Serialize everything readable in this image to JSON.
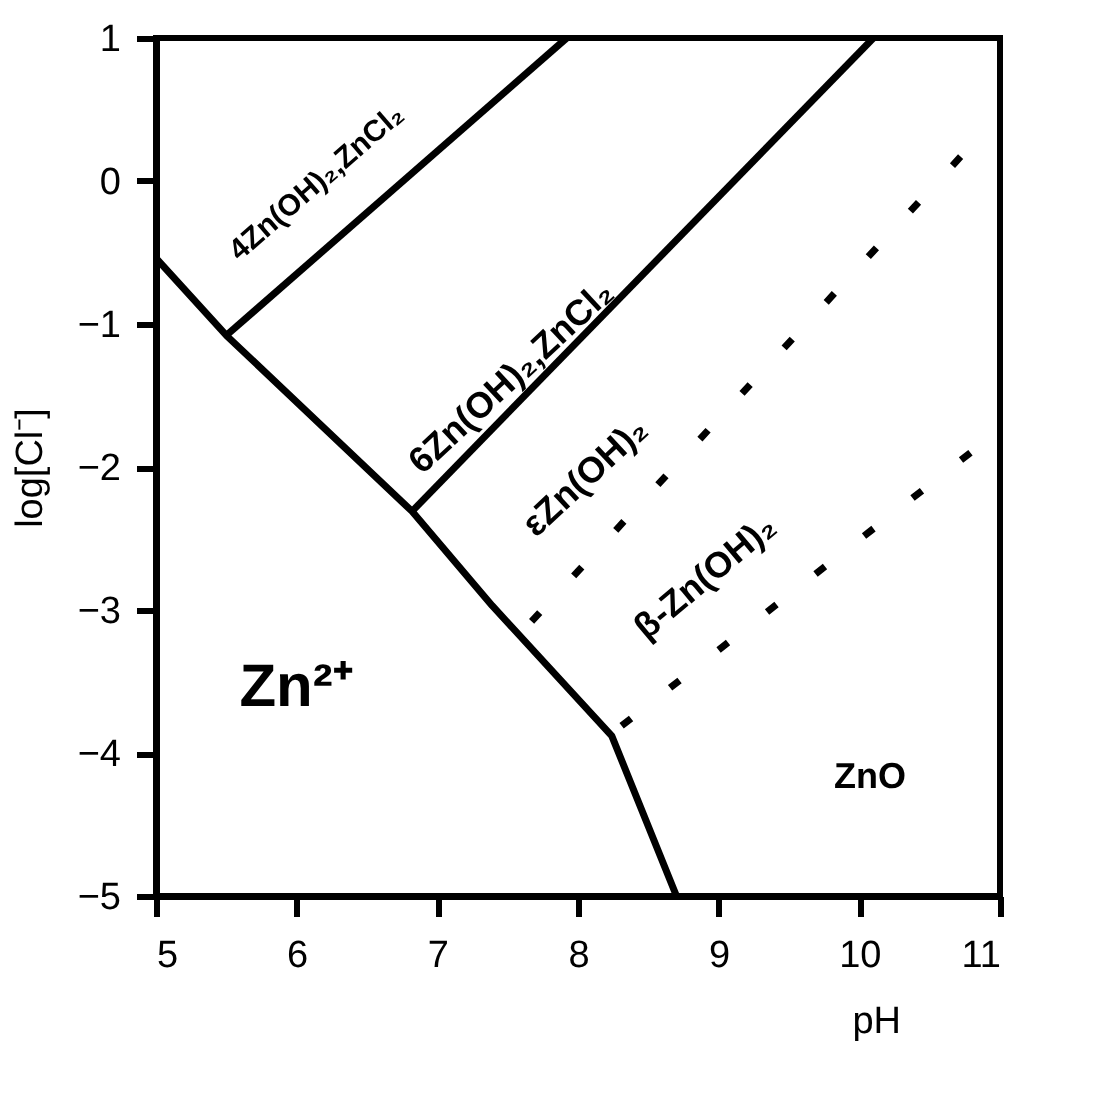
{
  "chart_data": {
    "type": "line",
    "xlabel": "pH",
    "ylabel": "log[Cl⁻]",
    "xlim": [
      5,
      11
    ],
    "ylim": [
      -5,
      1
    ],
    "xticks": [
      5,
      6,
      7,
      8,
      9,
      10,
      11
    ],
    "yticks": [
      -5,
      -4,
      -3,
      -2,
      -1,
      0,
      1
    ],
    "grid": false,
    "marker": "none",
    "series": [
      {
        "color": "#000000",
        "line_style": "solid",
        "x": [
          5,
          5.5,
          6.82,
          7.39,
          8.24,
          8.7
        ],
        "values": [
          -0.54,
          -1.08,
          -2.31,
          -2.97,
          -3.88,
          -5
        ]
      },
      {
        "color": "#000000",
        "line_style": "solid",
        "x": [
          5.5,
          7.92
        ],
        "values": [
          -1.08,
          1
        ]
      },
      {
        "color": "#000000",
        "line_style": "solid",
        "x": [
          6.82,
          10.1
        ],
        "values": [
          -2.31,
          1
        ]
      },
      {
        "color": "#000000",
        "line_style": "dashed",
        "x": [
          7.67,
          10.72
        ],
        "values": [
          -3.08,
          0.17
        ]
      },
      {
        "color": "#000000",
        "line_style": "dashed",
        "x": [
          8.31,
          10.79
        ],
        "values": [
          -3.81,
          -1.9
        ]
      }
    ],
    "annotations": [
      "4Zn(OH)₂,ZnCl₂",
      "6Zn(OH)₂,ZnCl₂",
      "εZn(OH)₂",
      "β-Zn(OH)₂",
      "Zn²⁺",
      "ZnO"
    ]
  }
}
